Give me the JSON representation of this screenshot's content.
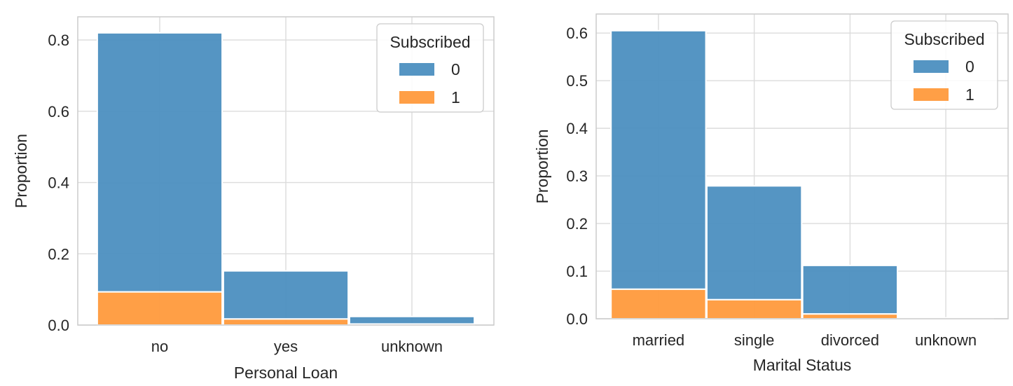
{
  "chart_data": [
    {
      "type": "bar",
      "stacked": true,
      "xlabel": "Personal Loan",
      "ylabel": "Proportion",
      "categories": [
        "no",
        "yes",
        "unknown"
      ],
      "ylim": [
        0,
        0.865
      ],
      "yticks": [
        "0.0",
        "0.2",
        "0.4",
        "0.6",
        "0.8"
      ],
      "ytick_values": [
        0,
        0.2,
        0.4,
        0.6,
        0.8
      ],
      "grid": true,
      "legend": {
        "title": "Subscribed",
        "placement": "top-right",
        "entries": [
          "0",
          "1"
        ]
      },
      "series": [
        {
          "name": "0",
          "color": "#4c8fc0",
          "values": [
            0.727,
            0.135,
            0.021
          ]
        },
        {
          "name": "1",
          "color": "#ff9a3c",
          "values": [
            0.093,
            0.017,
            0.003
          ]
        }
      ]
    },
    {
      "type": "bar",
      "stacked": true,
      "xlabel": "Marital Status",
      "ylabel": "Proportion",
      "categories": [
        "married",
        "single",
        "divorced",
        "unknown"
      ],
      "ylim": [
        0,
        0.64
      ],
      "yticks": [
        "0.0",
        "0.1",
        "0.2",
        "0.3",
        "0.4",
        "0.5",
        "0.6"
      ],
      "ytick_values": [
        0,
        0.1,
        0.2,
        0.3,
        0.4,
        0.5,
        0.6
      ],
      "grid": true,
      "legend": {
        "title": "Subscribed",
        "placement": "top-right",
        "entries": [
          "0",
          "1"
        ]
      },
      "series": [
        {
          "name": "0",
          "color": "#4c8fc0",
          "values": [
            0.543,
            0.239,
            0.102,
            0.002
          ]
        },
        {
          "name": "1",
          "color": "#ff9a3c",
          "values": [
            0.062,
            0.04,
            0.01,
            0.0
          ]
        }
      ]
    }
  ]
}
